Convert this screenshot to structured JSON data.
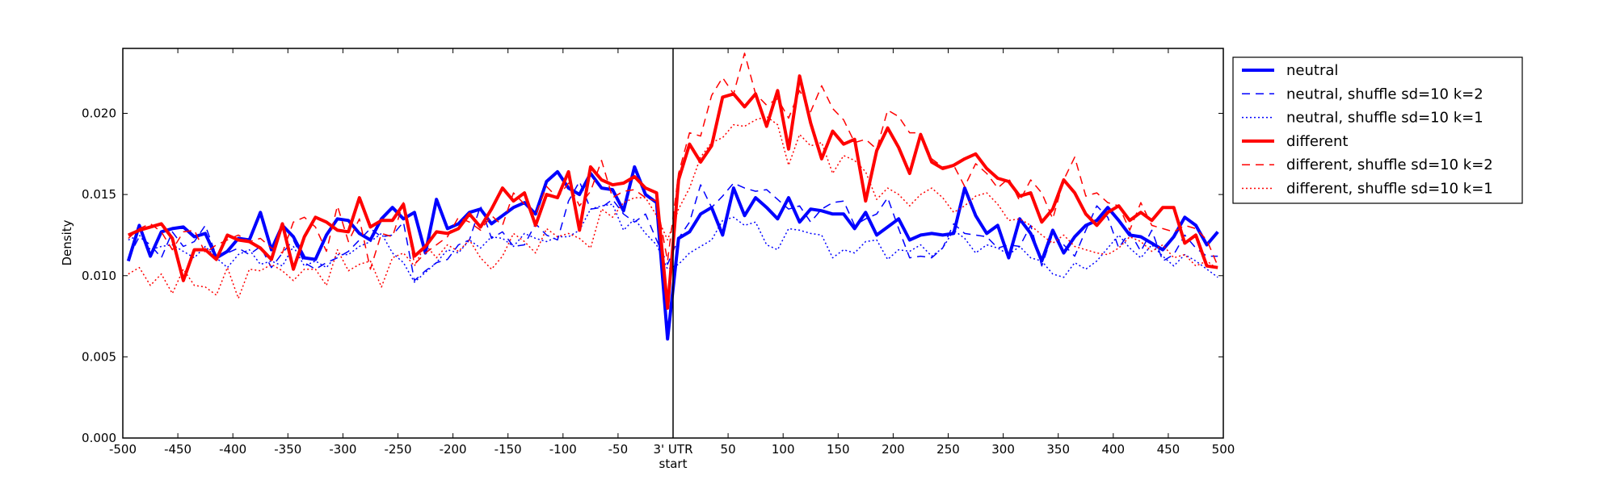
{
  "chart_data": {
    "type": "line",
    "title": "",
    "xlabel": "start",
    "ylabel": "Density",
    "xlim": [
      -500,
      500
    ],
    "ylim": [
      0,
      0.024
    ],
    "xticks": [
      -500,
      -450,
      -400,
      -350,
      -300,
      -250,
      -200,
      -150,
      -100,
      -50,
      0,
      50,
      100,
      150,
      200,
      250,
      300,
      350,
      400,
      450,
      500
    ],
    "xtick_labels": [
      "-500",
      "-450",
      "-400",
      "-350",
      "-300",
      "-250",
      "-200",
      "-150",
      "-100",
      "-50",
      "3' UTR",
      "50",
      "100",
      "150",
      "200",
      "250",
      "300",
      "350",
      "400",
      "450",
      "500"
    ],
    "yticks": [
      0.0,
      0.005,
      0.01,
      0.015,
      0.02
    ],
    "ytick_labels": [
      "0.000",
      "0.005",
      "0.010",
      "0.015",
      "0.020"
    ],
    "vline_x": 0,
    "grid": false,
    "legend_position": "outside right, top",
    "x": [
      -495,
      -485,
      -475,
      -465,
      -455,
      -445,
      -435,
      -425,
      -415,
      -405,
      -395,
      -385,
      -375,
      -365,
      -355,
      -345,
      -335,
      -325,
      -315,
      -305,
      -295,
      -285,
      -275,
      -265,
      -255,
      -245,
      -235,
      -225,
      -215,
      -205,
      -195,
      -185,
      -175,
      -165,
      -155,
      -145,
      -135,
      -125,
      -115,
      -105,
      -95,
      -85,
      -75,
      -65,
      -55,
      -45,
      -35,
      -25,
      -15,
      -5,
      5,
      15,
      25,
      35,
      45,
      55,
      65,
      75,
      85,
      95,
      105,
      115,
      125,
      135,
      145,
      155,
      165,
      175,
      185,
      195,
      205,
      215,
      225,
      235,
      245,
      255,
      265,
      275,
      285,
      295,
      305,
      315,
      325,
      335,
      345,
      355,
      365,
      375,
      385,
      395,
      405,
      415,
      425,
      435,
      445,
      455,
      465,
      475,
      485,
      495
    ],
    "series": [
      {
        "name": "neutral",
        "color": "#0000ff",
        "style": "solid",
        "width": 4,
        "values": [
          0.0109,
          0.0131,
          0.0112,
          0.0127,
          0.0129,
          0.013,
          0.0124,
          0.0126,
          0.0111,
          0.0115,
          0.0123,
          0.0122,
          0.0139,
          0.0116,
          0.0131,
          0.0124,
          0.0111,
          0.011,
          0.0125,
          0.0135,
          0.0134,
          0.0126,
          0.0122,
          0.0135,
          0.0142,
          0.0135,
          0.0139,
          0.0114,
          0.0147,
          0.0129,
          0.0132,
          0.0139,
          0.0141,
          0.0132,
          0.0137,
          0.0142,
          0.0145,
          0.0138,
          0.0158,
          0.0164,
          0.0154,
          0.015,
          0.0163,
          0.0154,
          0.0153,
          0.014,
          0.0167,
          0.015,
          0.0145,
          0.0061,
          0.0123,
          0.0127,
          0.0138,
          0.0142,
          0.0125,
          0.0154,
          0.0137,
          0.0148,
          0.0142,
          0.0135,
          0.0148,
          0.0133,
          0.0141,
          0.014,
          0.0138,
          0.0138,
          0.0129,
          0.0139,
          0.0125,
          0.013,
          0.0135,
          0.0122,
          0.0125,
          0.0126,
          0.0125,
          0.0126,
          0.0154,
          0.0137,
          0.0126,
          0.0131,
          0.0111,
          0.0135,
          0.0126,
          0.0109,
          0.0128,
          0.0114,
          0.0124,
          0.0131,
          0.0134,
          0.0142,
          0.0134,
          0.0125,
          0.0124,
          0.012,
          0.0116,
          0.0124,
          0.0136,
          0.0131,
          0.0119,
          0.0127
        ]
      },
      {
        "name": "neutral, shuffle sd=10 k=2",
        "color": "#0000ff",
        "style": "dashed",
        "width": 1.5,
        "values": [
          0.0111,
          0.0124,
          0.0119,
          0.0111,
          0.0127,
          0.0118,
          0.0121,
          0.0131,
          0.0112,
          0.0114,
          0.0117,
          0.0113,
          0.0118,
          0.0105,
          0.0114,
          0.0122,
          0.0108,
          0.0104,
          0.0108,
          0.0111,
          0.0115,
          0.0122,
          0.0129,
          0.0124,
          0.0125,
          0.0133,
          0.0097,
          0.0103,
          0.0108,
          0.011,
          0.0119,
          0.0122,
          0.0143,
          0.0123,
          0.0127,
          0.0118,
          0.0119,
          0.0132,
          0.0125,
          0.0122,
          0.0146,
          0.0158,
          0.0141,
          0.0142,
          0.0147,
          0.0138,
          0.0133,
          0.0138,
          0.0122,
          0.0107,
          0.0123,
          0.0133,
          0.0156,
          0.0142,
          0.0149,
          0.0157,
          0.0154,
          0.0152,
          0.0153,
          0.0147,
          0.0141,
          0.0143,
          0.0133,
          0.0141,
          0.0145,
          0.0146,
          0.0131,
          0.0135,
          0.0138,
          0.0148,
          0.0129,
          0.0111,
          0.0112,
          0.0111,
          0.0117,
          0.0132,
          0.0126,
          0.0125,
          0.0124,
          0.0117,
          0.0119,
          0.0118,
          0.0131,
          0.0106,
          0.0126,
          0.0119,
          0.0112,
          0.0128,
          0.0143,
          0.0136,
          0.0117,
          0.0127,
          0.0115,
          0.0128,
          0.0109,
          0.0113,
          0.0125,
          0.0117,
          0.0112,
          0.0112
        ]
      },
      {
        "name": "neutral, shuffle sd=10 k=1",
        "color": "#0000ff",
        "style": "dotted",
        "width": 1.5,
        "values": [
          0.0122,
          0.0125,
          0.0116,
          0.0118,
          0.0119,
          0.0115,
          0.0111,
          0.0118,
          0.0111,
          0.0105,
          0.0113,
          0.0116,
          0.0107,
          0.0109,
          0.0106,
          0.0118,
          0.0106,
          0.0109,
          0.0105,
          0.0113,
          0.0113,
          0.0118,
          0.0121,
          0.0126,
          0.0114,
          0.0108,
          0.0096,
          0.0102,
          0.0108,
          0.0116,
          0.0114,
          0.0122,
          0.0117,
          0.0124,
          0.0123,
          0.0118,
          0.0126,
          0.0123,
          0.0121,
          0.0124,
          0.0124,
          0.0128,
          0.0141,
          0.0143,
          0.0144,
          0.0128,
          0.0135,
          0.0126,
          0.0119,
          0.0104,
          0.0107,
          0.0114,
          0.0118,
          0.0122,
          0.0134,
          0.0136,
          0.0131,
          0.0133,
          0.0119,
          0.0116,
          0.0129,
          0.0128,
          0.0126,
          0.0125,
          0.0111,
          0.0116,
          0.0114,
          0.0121,
          0.0122,
          0.011,
          0.0116,
          0.0115,
          0.0119,
          0.0112,
          0.0117,
          0.0128,
          0.0123,
          0.0114,
          0.0119,
          0.0117,
          0.0113,
          0.0118,
          0.0111,
          0.0109,
          0.0101,
          0.0099,
          0.0108,
          0.0104,
          0.0109,
          0.0117,
          0.0125,
          0.0117,
          0.0111,
          0.0119,
          0.0112,
          0.0106,
          0.0113,
          0.0109,
          0.0104,
          0.0099
        ]
      },
      {
        "name": "different",
        "color": "#ff0000",
        "style": "solid",
        "width": 4,
        "values": [
          0.0125,
          0.0128,
          0.013,
          0.0132,
          0.0123,
          0.0097,
          0.0116,
          0.0116,
          0.011,
          0.0125,
          0.0122,
          0.0121,
          0.0117,
          0.011,
          0.0132,
          0.0104,
          0.0124,
          0.0136,
          0.0133,
          0.0128,
          0.0127,
          0.0148,
          0.013,
          0.0134,
          0.0134,
          0.0144,
          0.0112,
          0.0118,
          0.0127,
          0.0126,
          0.0129,
          0.0138,
          0.013,
          0.0141,
          0.0154,
          0.0146,
          0.0151,
          0.0131,
          0.015,
          0.0148,
          0.0164,
          0.0128,
          0.0167,
          0.0159,
          0.0156,
          0.0157,
          0.0161,
          0.0154,
          0.0151,
          0.008,
          0.0159,
          0.0181,
          0.017,
          0.018,
          0.021,
          0.0212,
          0.0204,
          0.0212,
          0.0192,
          0.0214,
          0.0178,
          0.0223,
          0.0194,
          0.0172,
          0.0189,
          0.0181,
          0.0184,
          0.0146,
          0.0177,
          0.0191,
          0.0179,
          0.0163,
          0.0187,
          0.017,
          0.0166,
          0.0168,
          0.0172,
          0.0175,
          0.0166,
          0.016,
          0.0158,
          0.0149,
          0.0151,
          0.0133,
          0.0141,
          0.0159,
          0.0151,
          0.0138,
          0.0131,
          0.0139,
          0.0143,
          0.0134,
          0.0139,
          0.0134,
          0.0142,
          0.0142,
          0.012,
          0.0125,
          0.0106,
          0.0105
        ]
      },
      {
        "name": "different, shuffle sd=10 k=2",
        "color": "#ff0000",
        "style": "dashed",
        "width": 1.5,
        "values": [
          0.0123,
          0.0129,
          0.0132,
          0.0127,
          0.0116,
          0.0127,
          0.0128,
          0.0114,
          0.0119,
          0.0122,
          0.0125,
          0.0121,
          0.0123,
          0.0117,
          0.0114,
          0.0133,
          0.0136,
          0.013,
          0.0115,
          0.0143,
          0.0121,
          0.0135,
          0.0104,
          0.0126,
          0.0124,
          0.0145,
          0.0107,
          0.0114,
          0.0119,
          0.0124,
          0.0136,
          0.0133,
          0.0128,
          0.0137,
          0.0131,
          0.0151,
          0.0144,
          0.0137,
          0.0155,
          0.0148,
          0.0157,
          0.0143,
          0.0152,
          0.0171,
          0.0148,
          0.0152,
          0.0153,
          0.0148,
          0.0146,
          0.0109,
          0.0163,
          0.0188,
          0.0186,
          0.0211,
          0.0222,
          0.0212,
          0.0237,
          0.0212,
          0.0205,
          0.0209,
          0.0197,
          0.0214,
          0.0201,
          0.0217,
          0.0203,
          0.0196,
          0.0182,
          0.0184,
          0.0178,
          0.0202,
          0.0198,
          0.0188,
          0.0188,
          0.0172,
          0.0167,
          0.0168,
          0.0155,
          0.0169,
          0.0163,
          0.0154,
          0.016,
          0.0146,
          0.0159,
          0.0151,
          0.0135,
          0.0159,
          0.0173,
          0.0149,
          0.0151,
          0.0145,
          0.0143,
          0.0128,
          0.0145,
          0.0131,
          0.0129,
          0.0127,
          0.0131,
          0.0129,
          0.0122,
          0.0106
        ]
      },
      {
        "name": "different, shuffle sd=10 k=1",
        "color": "#ff0000",
        "style": "dotted",
        "width": 1.5,
        "values": [
          0.0101,
          0.0105,
          0.0094,
          0.0101,
          0.0089,
          0.0104,
          0.0094,
          0.0093,
          0.0088,
          0.0105,
          0.0086,
          0.0104,
          0.0103,
          0.0107,
          0.0103,
          0.0097,
          0.0104,
          0.0104,
          0.0094,
          0.0116,
          0.0103,
          0.0107,
          0.0109,
          0.0093,
          0.0111,
          0.0114,
          0.0106,
          0.0119,
          0.0111,
          0.0119,
          0.0115,
          0.0122,
          0.0111,
          0.0104,
          0.0112,
          0.0126,
          0.0121,
          0.0114,
          0.0129,
          0.0124,
          0.0126,
          0.0123,
          0.0117,
          0.0141,
          0.0136,
          0.0145,
          0.0148,
          0.0148,
          0.0137,
          0.0122,
          0.0141,
          0.0154,
          0.0173,
          0.0182,
          0.0185,
          0.0193,
          0.0192,
          0.0196,
          0.0198,
          0.0193,
          0.0168,
          0.0187,
          0.018,
          0.0182,
          0.0163,
          0.0174,
          0.0171,
          0.0164,
          0.0147,
          0.0154,
          0.015,
          0.0143,
          0.015,
          0.0154,
          0.0148,
          0.0139,
          0.0143,
          0.0149,
          0.0151,
          0.0144,
          0.0134,
          0.0135,
          0.0131,
          0.0125,
          0.012,
          0.0125,
          0.0118,
          0.0116,
          0.0114,
          0.0113,
          0.0117,
          0.0124,
          0.0121,
          0.0115,
          0.0119,
          0.0111,
          0.0113,
          0.0106,
          0.0109,
          0.0104
        ]
      }
    ]
  }
}
